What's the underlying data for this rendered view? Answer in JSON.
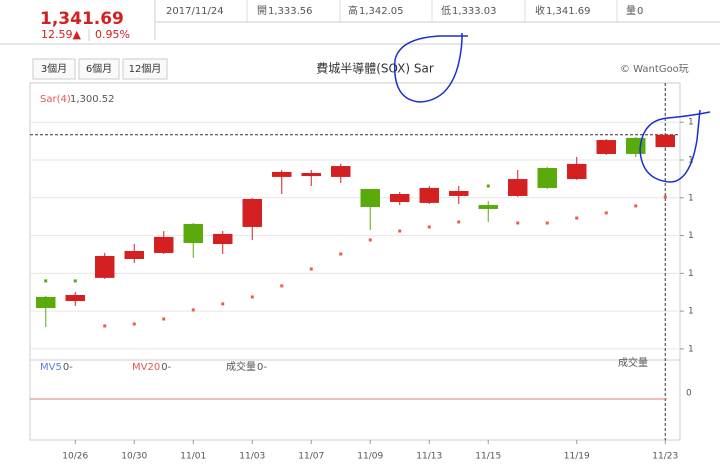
{
  "header": {
    "price": "1,341.69",
    "change": "12.59▲",
    "percent": "0.95%",
    "date": "2017/11/24",
    "quotes": [
      {
        "label": "開",
        "value": "1,333.56"
      },
      {
        "label": "高",
        "value": "1,342.05"
      },
      {
        "label": "低",
        "value": "1,333.03"
      },
      {
        "label": "收",
        "value": "1,341.69"
      },
      {
        "label": "量",
        "value": "0"
      }
    ],
    "buttons": [
      "3個月",
      "6個月",
      "12個月"
    ],
    "copyright": "© WantGoo玩"
  },
  "chart_data": {
    "type": "candlestick",
    "title": "費城半導體(SOX) Sar",
    "categories": [
      null,
      "10/26",
      null,
      "10/30",
      null,
      "11/01",
      null,
      "11/03",
      null,
      "11/07",
      null,
      "11/09",
      null,
      "11/13",
      null,
      "11/15",
      null,
      null,
      "11/19",
      null,
      null,
      "11/23"
    ],
    "open": [
      1234.4,
      1231.7,
      1247.0,
      1259.5,
      1263.5,
      1282.7,
      1269.4,
      1280.7,
      1313.8,
      1314.4,
      1313.8,
      1305.8,
      1297.2,
      1296.6,
      1301.2,
      1295.2,
      1301.2,
      1319.7,
      1312.4,
      1329.0,
      1339.6,
      1333.56
    ],
    "high": [
      1235.0,
      1237.7,
      1263.5,
      1269.4,
      1278.0,
      1283.3,
      1278.0,
      1299.9,
      1318.4,
      1318.4,
      1322.4,
      1305.8,
      1303.8,
      1307.8,
      1307.8,
      1297.9,
      1318.4,
      1320.4,
      1327.0,
      1338.9,
      1340.2,
      1342.05
    ],
    "low": [
      1214.5,
      1228.4,
      1246.3,
      1256.9,
      1262.8,
      1260.2,
      1262.8,
      1272.1,
      1302.5,
      1307.8,
      1309.8,
      1278.7,
      1295.2,
      1295.9,
      1295.9,
      1284.0,
      1300.5,
      1305.8,
      1311.8,
      1328.3,
      1327.0,
      1333.03
    ],
    "close": [
      1227.1,
      1235.7,
      1261.5,
      1264.8,
      1274.1,
      1270.1,
      1276.1,
      1299.2,
      1317.1,
      1316.4,
      1321.0,
      1293.9,
      1302.5,
      1306.5,
      1304.5,
      1292.6,
      1312.4,
      1306.5,
      1322.4,
      1338.2,
      1329.0,
      1341.69
    ],
    "up_color": "#d42020",
    "down_color": "#5aaa0c",
    "sar": {
      "name": "Sar(4)",
      "legend_value": "1,300.52",
      "values": [
        1245.0,
        1245.0,
        1215.2,
        1216.5,
        1219.8,
        1225.8,
        1229.8,
        1234.4,
        1241.7,
        1252.9,
        1262.8,
        1272.1,
        1278.0,
        1280.7,
        1284.0,
        1307.8,
        1283.3,
        1283.3,
        1286.6,
        1290.0,
        1294.6,
        1300.52
      ],
      "colors": [
        "#5aaa0c",
        "#5aaa0c",
        "#f05a4a",
        "#f05a4a",
        "#f05a4a",
        "#f05a4a",
        "#f05a4a",
        "#f05a4a",
        "#f05a4a",
        "#f05a4a",
        "#f05a4a",
        "#f05a4a",
        "#f05a4a",
        "#f05a4a",
        "#f05a4a",
        "#5aaa0c",
        "#f05a4a",
        "#f05a4a",
        "#f05a4a",
        "#f05a4a",
        "#f05a4a",
        "#f05a4a"
      ]
    },
    "ylim": [
      1194,
      1359.4
    ],
    "yticks": [
      {
        "value": 1350,
        "label": "1"
      },
      {
        "value": 1325,
        "label": "1"
      },
      {
        "value": 1300,
        "label": "1"
      },
      {
        "value": 1275,
        "label": "1"
      },
      {
        "value": 1250,
        "label": "1"
      },
      {
        "value": 1225,
        "label": "1"
      },
      {
        "value": 1200,
        "label": "1"
      }
    ],
    "grid": true,
    "volume": {
      "title": "成交量",
      "legends": [
        {
          "name": "MV5",
          "value": "0-",
          "color": "#5b7fe0"
        },
        {
          "name": "MV20",
          "value": "0-",
          "color": "#e25858"
        },
        {
          "name": "成交量",
          "value": "0-",
          "color": "#555"
        }
      ],
      "yticks": [
        0
      ]
    }
  }
}
